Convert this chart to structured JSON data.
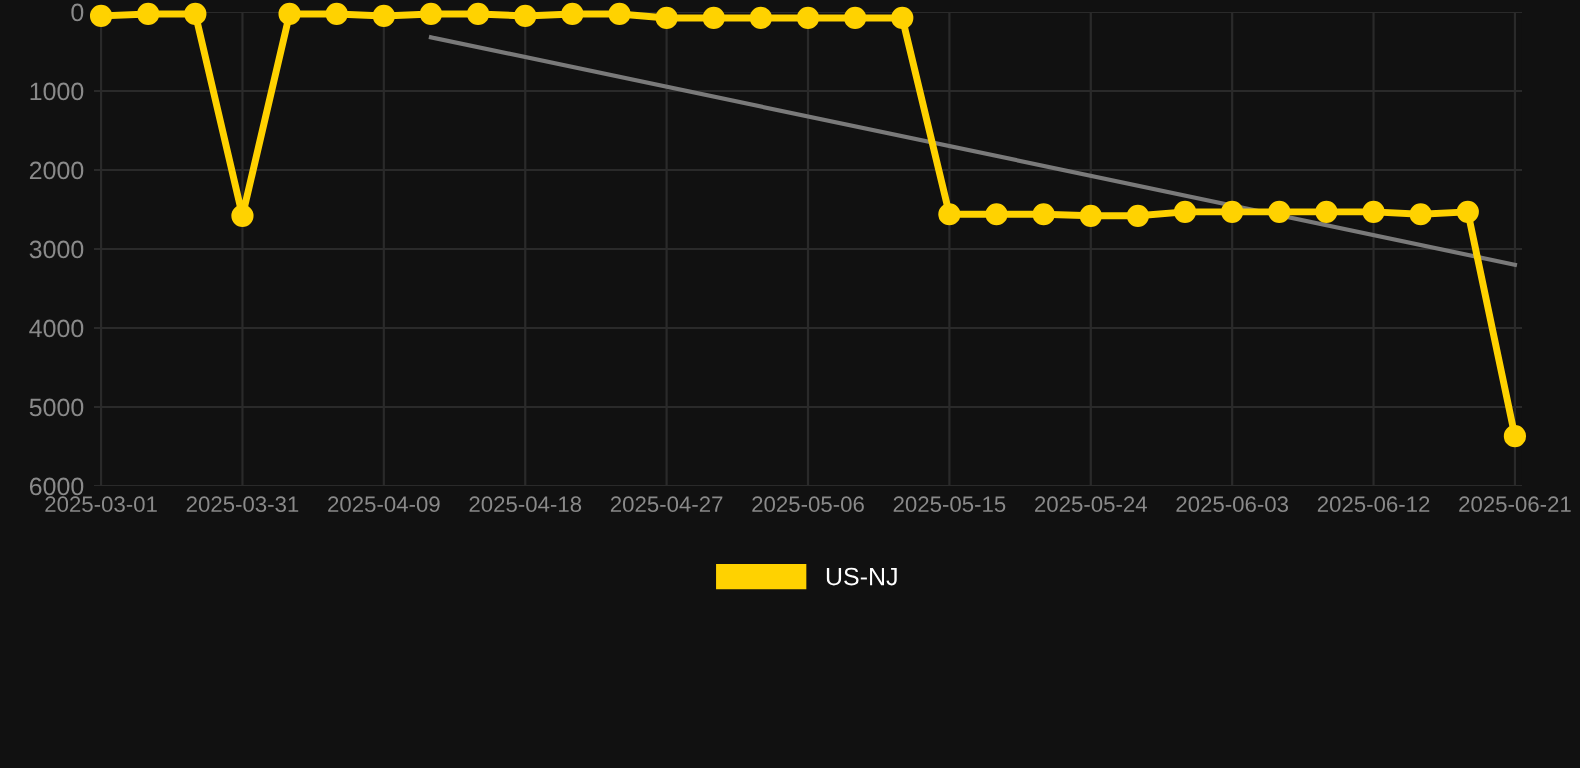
{
  "chart_data": {
    "type": "line",
    "categories": [
      "2025-03-01",
      null,
      null,
      "2025-03-31",
      null,
      null,
      "2025-04-09",
      null,
      null,
      "2025-04-18",
      null,
      null,
      "2025-04-27",
      null,
      null,
      "2025-05-06",
      null,
      null,
      "2025-05-15",
      null,
      null,
      "2025-05-24",
      null,
      null,
      "2025-06-03",
      null,
      null,
      "2025-06-12",
      null,
      null,
      "2025-06-21"
    ],
    "series": [
      {
        "name": "US-NJ",
        "color": "#ffd200",
        "marker": "circle",
        "values": [
          50,
          25,
          25,
          2580,
          25,
          25,
          50,
          25,
          25,
          50,
          25,
          25,
          75,
          75,
          75,
          75,
          75,
          75,
          2560,
          2560,
          2560,
          2580,
          2580,
          2530,
          2530,
          2530,
          2530,
          2530,
          2560,
          2530,
          5370
        ]
      },
      {
        "color": "#7a7a7a",
        "marker": "none",
        "values": [
          null,
          null,
          null,
          null,
          null,
          null,
          null,
          320,
          null,
          null,
          null,
          null,
          null,
          null,
          null,
          null,
          null,
          null,
          null,
          null,
          null,
          null,
          null,
          null,
          null,
          null,
          null,
          null,
          null,
          null,
          3200
        ]
      }
    ],
    "ylim": [
      6000,
      0
    ],
    "yticks": [
      0,
      1000,
      2000,
      3000,
      4000,
      5000,
      6000
    ],
    "grid": true,
    "legend": "bottom"
  }
}
